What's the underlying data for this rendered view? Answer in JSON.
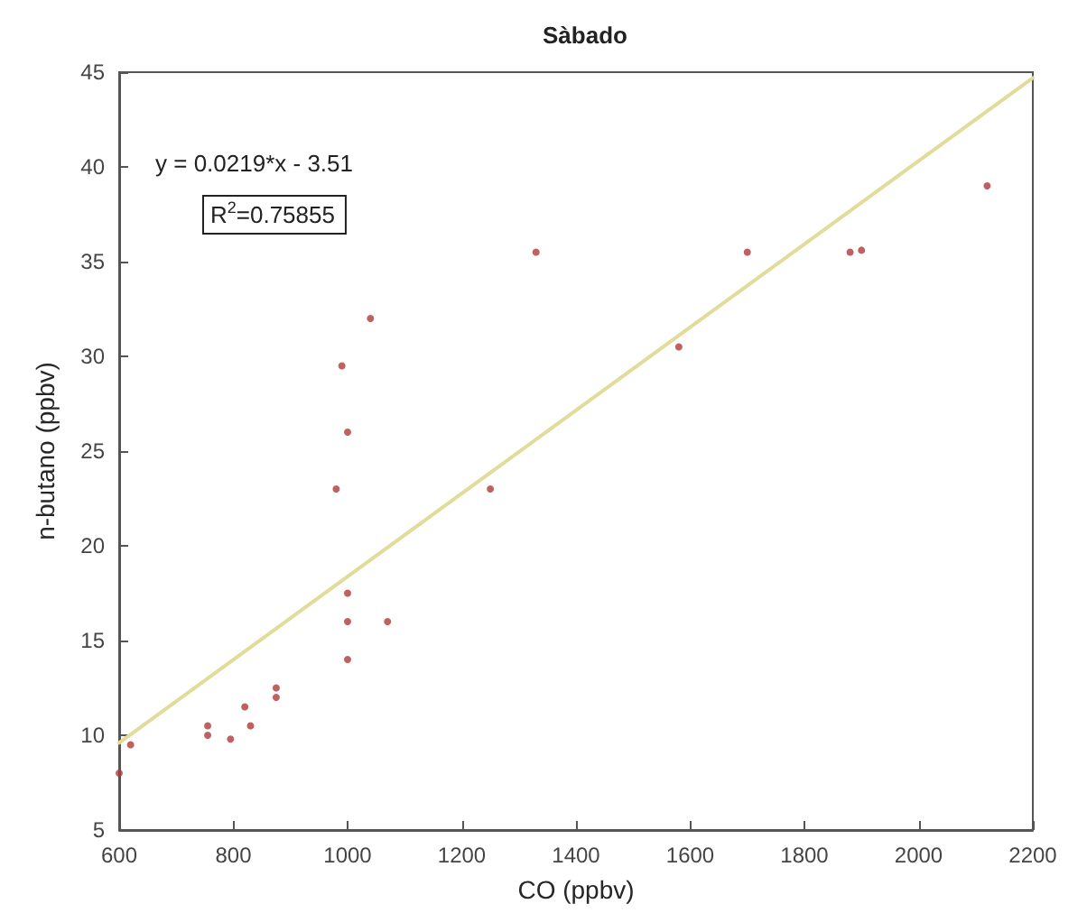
{
  "chart_data": {
    "type": "scatter",
    "title": "Sàbado",
    "xlabel": "CO (ppbv)",
    "ylabel": "n-butano (ppbv)",
    "annotations": [
      "y = 0.0219*x - 3.51",
      "R$^{2}$=0.75855"
    ],
    "xlim": [
      600,
      2200
    ],
    "xticks": [
      600,
      800,
      1000,
      1200,
      1400,
      1600,
      1800,
      2000,
      2200
    ],
    "ylim": [
      5,
      45
    ],
    "yticks": [
      5,
      10,
      15,
      20,
      25,
      30,
      35,
      40,
      45
    ],
    "grid": false,
    "marker": "circle",
    "series": [
      {
        "color": "#b03a3a",
        "x": [
          600,
          620,
          755,
          755,
          795,
          820,
          830,
          875,
          875,
          980,
          990,
          1000,
          1000,
          1000,
          1000,
          1040,
          1070,
          1250,
          1330,
          1580,
          1700,
          1880,
          1900,
          2120
        ],
        "values": [
          8,
          9.5,
          10.5,
          10,
          9.8,
          11.5,
          10.5,
          12.5,
          12,
          23,
          29.5,
          26,
          17.5,
          16,
          14,
          32,
          16,
          23,
          35.5,
          30.5,
          35.5,
          35.5,
          35.6,
          39
        ]
      },
      {
        "type": "line",
        "color": "#e2dc9a",
        "marker": "none",
        "x": [
          600,
          2200
        ],
        "values": [
          9.6,
          44.7
        ]
      }
    ]
  }
}
